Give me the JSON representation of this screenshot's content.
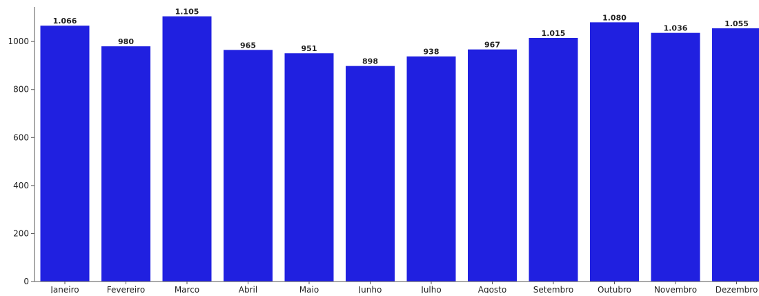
{
  "chart_data": {
    "type": "bar",
    "title": "",
    "xlabel": "",
    "ylabel": "",
    "categories": [
      "Janeiro",
      "Fevereiro",
      "Marco",
      "Abril",
      "Maio",
      "Junho",
      "Julho",
      "Agosto",
      "Setembro",
      "Outubro",
      "Novembro",
      "Dezembro"
    ],
    "values": [
      1066,
      980,
      1105,
      965,
      951,
      898,
      938,
      967,
      1015,
      1080,
      1036,
      1055
    ],
    "data_labels": [
      "1.066",
      "980",
      "1.105",
      "965",
      "951",
      "898",
      "938",
      "967",
      "1.015",
      "1.080",
      "1.036",
      "1.055"
    ],
    "ylim": [
      0,
      1150
    ],
    "yticks": [
      0,
      200,
      400,
      600,
      800,
      1000
    ],
    "grid": false,
    "bar_color": "#2020e0",
    "axis_color": "#555555",
    "label_color": "#222222"
  }
}
